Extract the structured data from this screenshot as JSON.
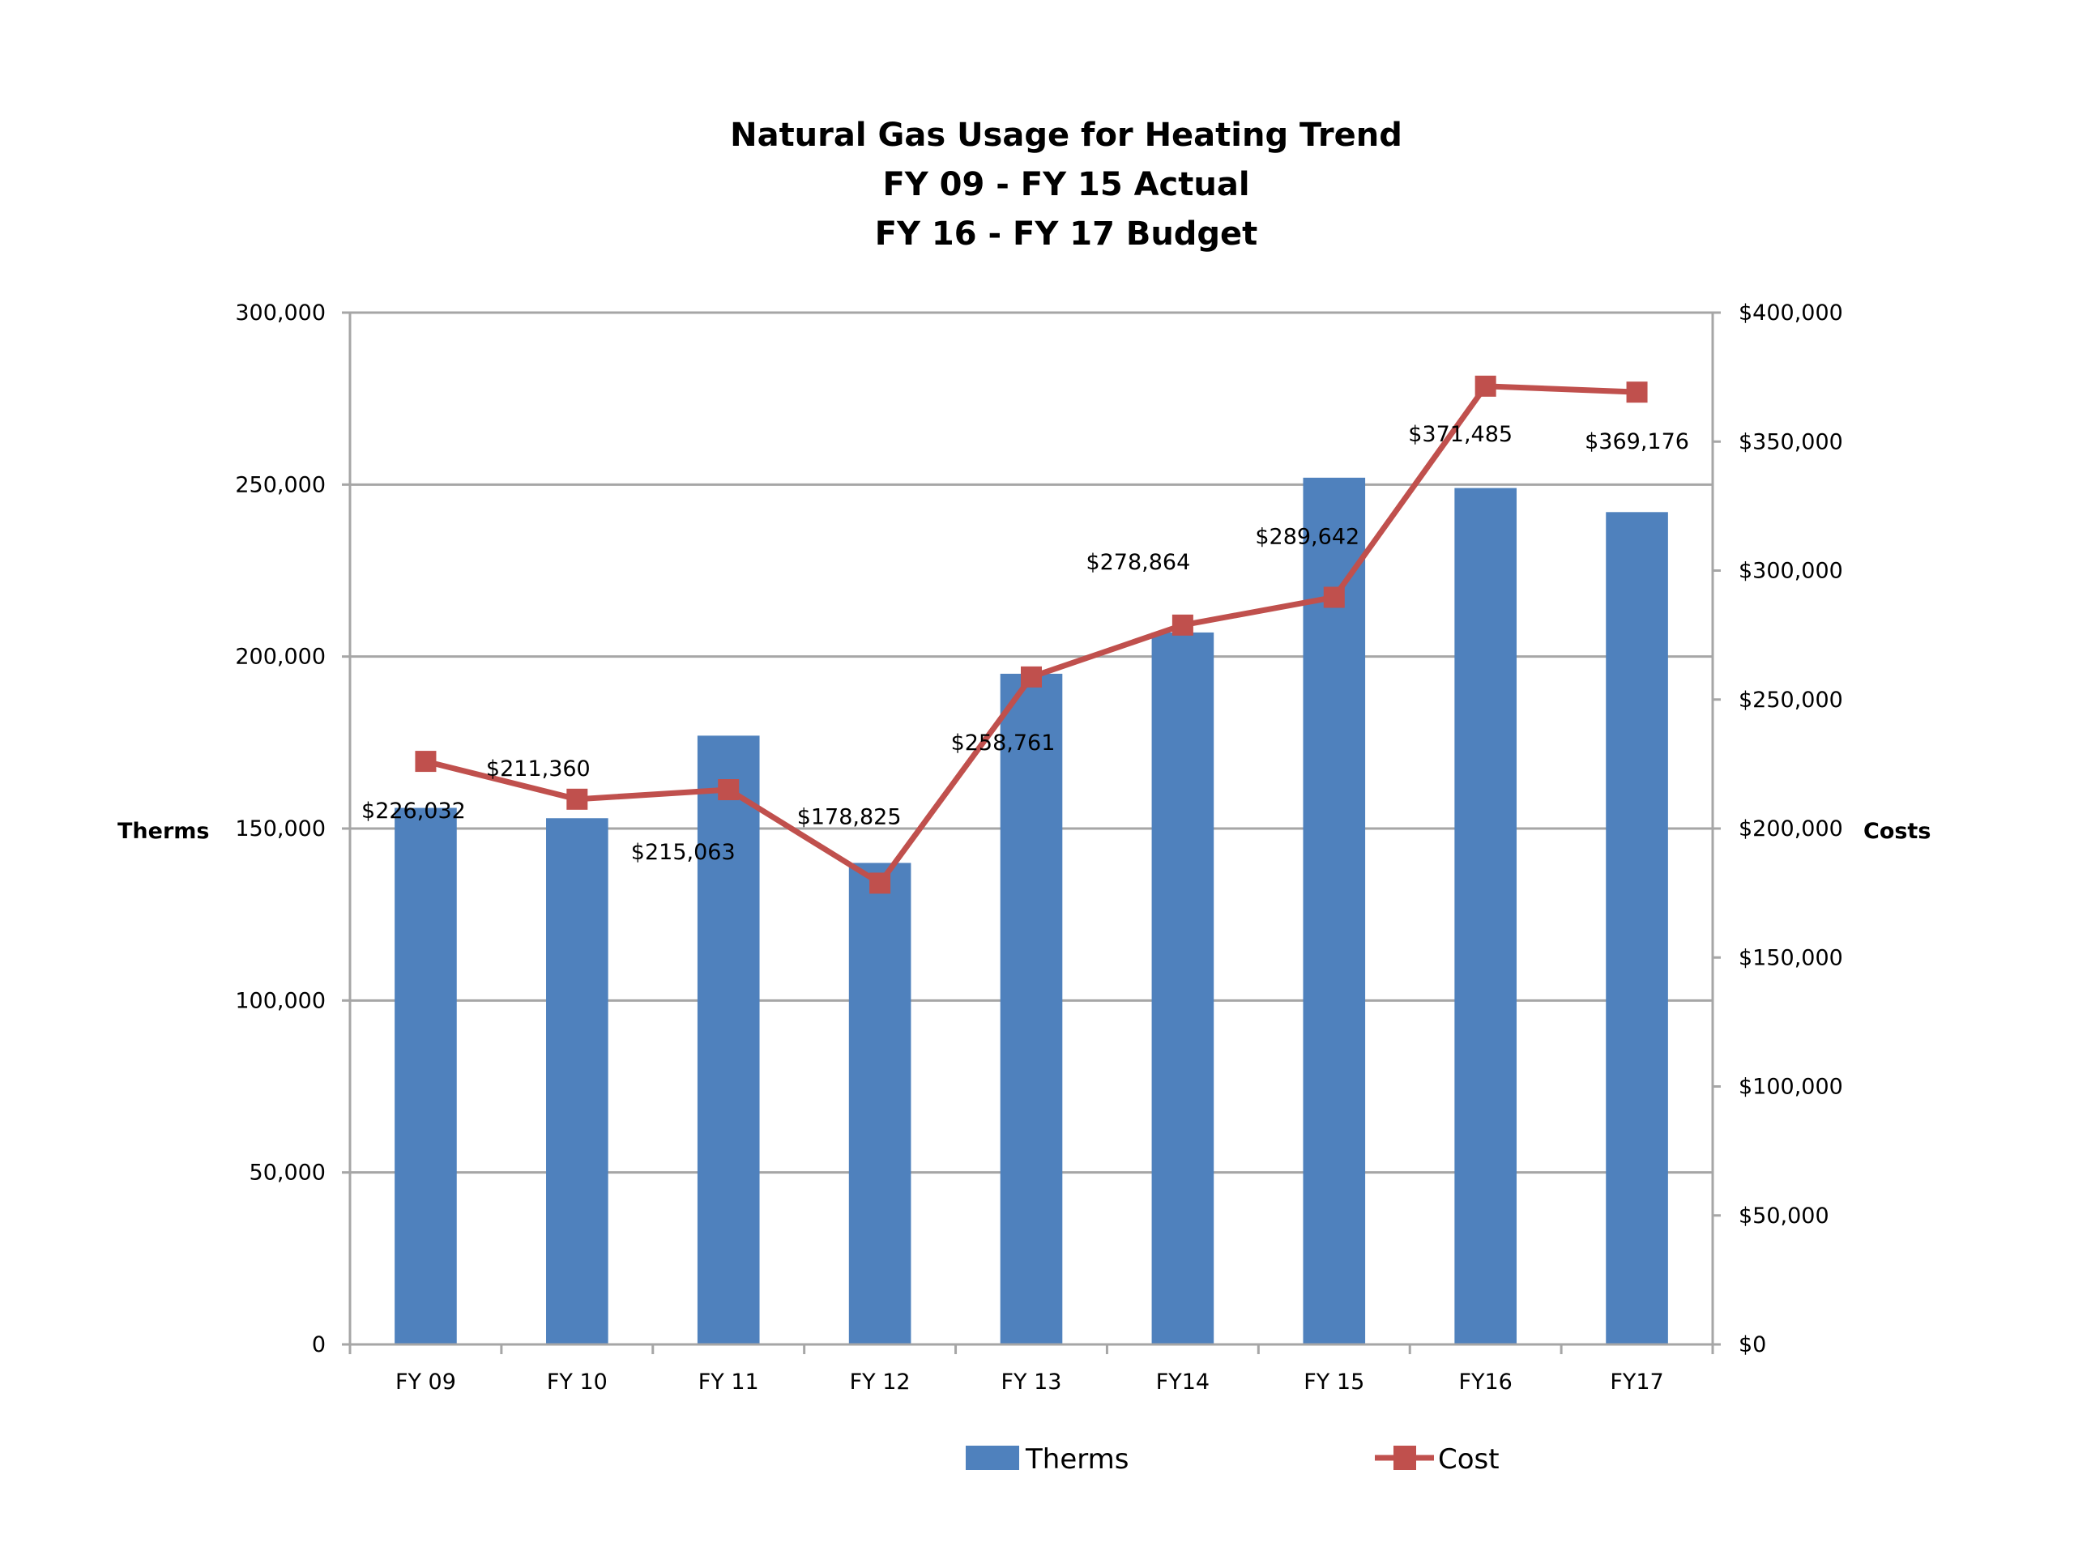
{
  "chart_data": {
    "type": "bar",
    "title": [
      "Natural Gas Usage for Heating Trend",
      "FY 09 - FY 15 Actual",
      "FY 16 - FY 17 Budget"
    ],
    "categories": [
      "FY 09",
      "FY 10",
      "FY 11",
      "FY 12",
      "FY 13",
      "FY14",
      "FY 15",
      "FY16",
      "FY17"
    ],
    "series": [
      {
        "name": "Therms",
        "type": "bar",
        "axis": "left",
        "color": "#4F81BD",
        "values": [
          156000,
          153000,
          177000,
          140000,
          195000,
          207000,
          252000,
          249000,
          242000
        ]
      },
      {
        "name": "Cost",
        "type": "line",
        "axis": "right",
        "color": "#C0504D",
        "marker": "square",
        "values": [
          226032,
          211360,
          215063,
          178825,
          258761,
          278864,
          289642,
          371485,
          369176
        ],
        "labels": [
          "$226,032",
          "$211,360",
          "$215,063",
          "$178,825",
          "$258,761",
          "$278,864",
          "$289,642",
          "$371,485",
          "$369,176"
        ]
      }
    ],
    "ylabel": "Therms",
    "y2label": "Costs",
    "ylim": [
      0,
      300000
    ],
    "y2lim": [
      0,
      400000
    ],
    "yticks": [
      "0",
      "50,000",
      "100,000",
      "150,000",
      "200,000",
      "250,000",
      "300,000"
    ],
    "y2ticks": [
      "$0",
      "$50,000",
      "$100,000",
      "$150,000",
      "$200,000",
      "$250,000",
      "$300,000",
      "$350,000",
      "$400,000"
    ],
    "grid": true,
    "legend": "bottom",
    "gridline_color": "#A6A6A6"
  }
}
